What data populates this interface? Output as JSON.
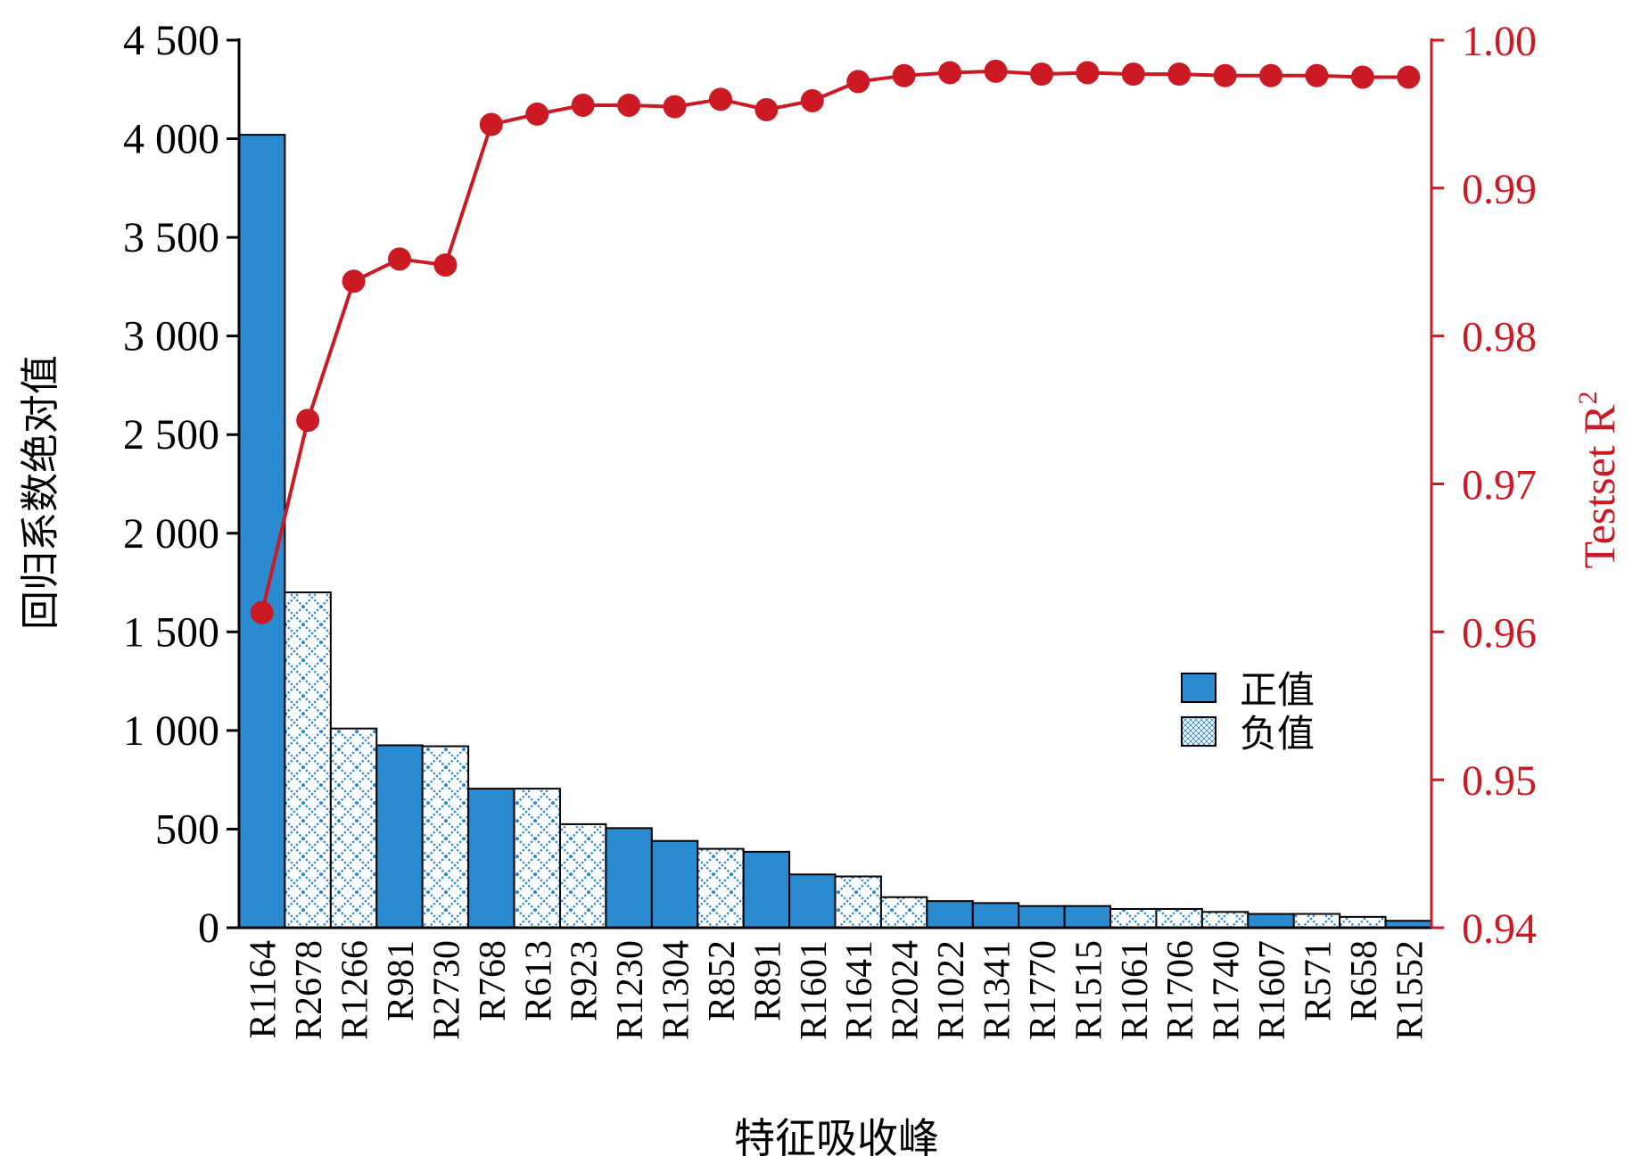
{
  "chart_data": {
    "type": "bar",
    "xlabel": "特征吸收峰",
    "ylabel": "回归系数绝对值",
    "y2label": "Testset R",
    "y2label_sup": "2",
    "ylim": [
      0,
      4500
    ],
    "y2lim": [
      0.94,
      1.0
    ],
    "yticks": [
      0,
      500,
      1000,
      1500,
      2000,
      2500,
      3000,
      3500,
      4000,
      4500
    ],
    "ytick_labels": [
      "0",
      "500",
      "1 000",
      "1 500",
      "2 000",
      "2 500",
      "3 000",
      "3 500",
      "4 000",
      "4 500"
    ],
    "y2ticks": [
      0.94,
      0.95,
      0.96,
      0.97,
      0.98,
      0.99,
      1.0
    ],
    "y2tick_labels": [
      "0.94",
      "0.95",
      "0.96",
      "0.97",
      "0.98",
      "0.99",
      "1.00"
    ],
    "categories": [
      "R1164",
      "R2678",
      "R1266",
      "R981",
      "R2730",
      "R768",
      "R613",
      "R923",
      "R1230",
      "R1304",
      "R852",
      "R891",
      "R1601",
      "R1641",
      "R2024",
      "R1022",
      "R1341",
      "R1770",
      "R1515",
      "R1061",
      "R1706",
      "R1740",
      "R1607",
      "R571",
      "R658",
      "R1552"
    ],
    "values": [
      4020,
      1700,
      1010,
      925,
      920,
      705,
      705,
      525,
      505,
      440,
      400,
      385,
      270,
      260,
      155,
      135,
      125,
      110,
      110,
      95,
      95,
      80,
      70,
      70,
      55,
      35
    ],
    "signs": [
      "positive",
      "negative",
      "negative",
      "positive",
      "negative",
      "positive",
      "negative",
      "negative",
      "positive",
      "positive",
      "negative",
      "positive",
      "positive",
      "negative",
      "negative",
      "positive",
      "positive",
      "positive",
      "positive",
      "negative",
      "negative",
      "negative",
      "positive",
      "negative",
      "negative",
      "positive"
    ],
    "r2": [
      0.9613,
      0.9743,
      0.9837,
      0.9852,
      0.9848,
      0.9943,
      0.995,
      0.9956,
      0.9956,
      0.9955,
      0.996,
      0.9953,
      0.9959,
      0.9972,
      0.9976,
      0.9978,
      0.9979,
      0.9977,
      0.9978,
      0.9977,
      0.9977,
      0.9976,
      0.9976,
      0.9976,
      0.9975,
      0.9975
    ],
    "legend": {
      "position": "center-right",
      "entries": [
        {
          "key": "positive",
          "label": "正值"
        },
        {
          "key": "negative",
          "label": "负值"
        }
      ]
    },
    "colors": {
      "bar_positive": "#2b8bd0",
      "bar_negative_bg": "#ffffff",
      "bar_negative_pattern": "#2b8bd0",
      "bar_stroke": "#000000",
      "line": "#cc1a24",
      "right_axis": "#cc1a24",
      "left_axis": "#000000"
    },
    "grid": false
  }
}
